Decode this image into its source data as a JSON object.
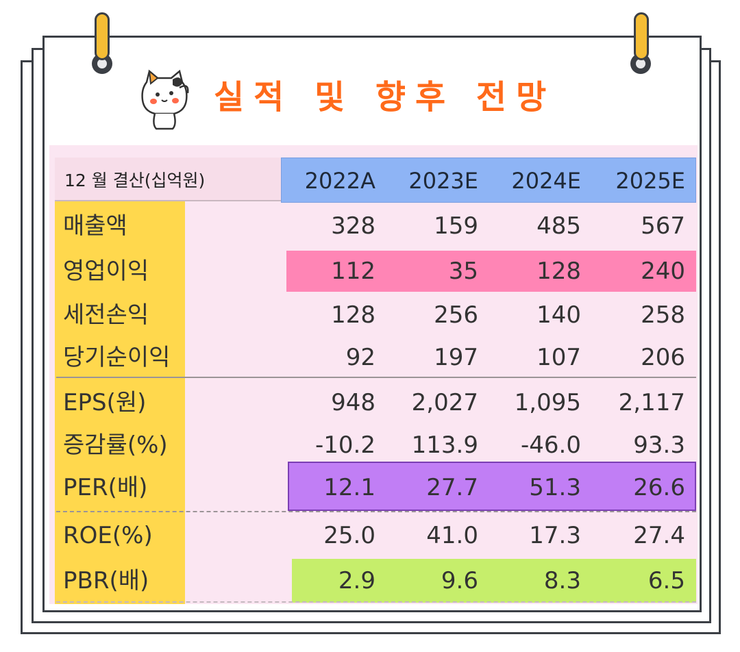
{
  "title": "실적 및 향후 전망",
  "table": {
    "header_label": "12 월 결산(십억원)",
    "columns": [
      "2022A",
      "2023E",
      "2024E",
      "2025E"
    ],
    "rows": [
      {
        "label": "매출액",
        "values": [
          "328",
          "159",
          "485",
          "567"
        ]
      },
      {
        "label": "영업이익",
        "values": [
          "112",
          "35",
          "128",
          "240"
        ]
      },
      {
        "label": "세전손익",
        "values": [
          "128",
          "256",
          "140",
          "258"
        ]
      },
      {
        "label": "당기순이익",
        "values": [
          "92",
          "197",
          "107",
          "206"
        ]
      },
      {
        "label": "EPS(원)",
        "values": [
          "948",
          "2,027",
          "1,095",
          "2,117"
        ]
      },
      {
        "label": "증감률(%)",
        "values": [
          "-10.2",
          "113.9",
          "-46.0",
          "93.3"
        ]
      },
      {
        "label": "PER(배)",
        "values": [
          "12.1",
          "27.7",
          "51.3",
          "26.6"
        ]
      },
      {
        "label": "ROE(%)",
        "values": [
          "25.0",
          "41.0",
          "17.3",
          "27.4"
        ]
      },
      {
        "label": "PBR(배)",
        "values": [
          "2.9",
          "9.6",
          "8.3",
          "6.5"
        ]
      }
    ]
  },
  "colors": {
    "title": "#ff6a1a",
    "header_blue": "#8eb4f5",
    "label_column": "#ffd84d",
    "highlight_operating_profit": "#ff85b5",
    "highlight_per": "#c17ef5",
    "highlight_pbr": "#c6ee6b",
    "background": "#fbe6f2"
  }
}
